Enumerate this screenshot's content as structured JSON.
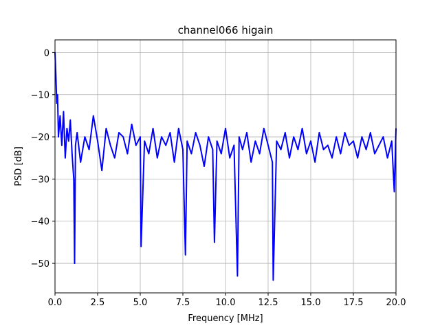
{
  "chart_data": {
    "type": "line",
    "title": "channel066 higain",
    "xlabel": "Frequency [MHz]",
    "ylabel": "PSD [dB]",
    "xlim": [
      0,
      20
    ],
    "ylim": [
      -57,
      3
    ],
    "x_ticks": [
      0.0,
      2.5,
      5.0,
      7.5,
      10.0,
      12.5,
      15.0,
      17.5,
      20.0
    ],
    "x_tick_labels": [
      "0.0",
      "2.5",
      "5.0",
      "7.5",
      "10.0",
      "12.5",
      "15.0",
      "17.5",
      "20.0"
    ],
    "y_ticks": [
      0,
      -10,
      -20,
      -30,
      -40,
      -50
    ],
    "y_tick_labels": [
      "0",
      "−10",
      "−20",
      "−30",
      "−40",
      "−50"
    ],
    "grid": true,
    "line_color": "#0000ff",
    "series": [
      {
        "name": "",
        "x": [
          0.0,
          0.05,
          0.1,
          0.15,
          0.2,
          0.3,
          0.4,
          0.5,
          0.6,
          0.7,
          0.8,
          0.9,
          1.0,
          1.1,
          1.15,
          1.2,
          1.3,
          1.5,
          1.75,
          2.0,
          2.25,
          2.5,
          2.75,
          3.0,
          3.25,
          3.5,
          3.75,
          4.0,
          4.25,
          4.5,
          4.75,
          5.0,
          5.05,
          5.25,
          5.5,
          5.75,
          6.0,
          6.25,
          6.5,
          6.75,
          7.0,
          7.25,
          7.5,
          7.65,
          7.75,
          8.0,
          8.25,
          8.5,
          8.75,
          9.0,
          9.25,
          9.35,
          9.5,
          9.75,
          10.0,
          10.25,
          10.5,
          10.7,
          10.8,
          11.0,
          11.25,
          11.5,
          11.75,
          12.0,
          12.25,
          12.5,
          12.75,
          12.8,
          13.0,
          13.25,
          13.5,
          13.75,
          14.0,
          14.25,
          14.5,
          14.75,
          15.0,
          15.25,
          15.5,
          15.75,
          16.0,
          16.25,
          16.5,
          16.75,
          17.0,
          17.25,
          17.5,
          17.75,
          18.0,
          18.25,
          18.5,
          18.75,
          19.0,
          19.25,
          19.5,
          19.75,
          19.9,
          20.0
        ],
        "y": [
          0,
          -5,
          -12,
          -10,
          -20,
          -15,
          -22,
          -14,
          -25,
          -18,
          -21,
          -16,
          -24,
          -30,
          -50,
          -22,
          -19,
          -26,
          -20,
          -23,
          -15,
          -21,
          -28,
          -18,
          -22,
          -25,
          -19,
          -20,
          -24,
          -17,
          -22,
          -20,
          -46,
          -21,
          -24,
          -18,
          -25,
          -20,
          -22,
          -19,
          -26,
          -18,
          -23,
          -48,
          -21,
          -24,
          -19,
          -22,
          -27,
          -20,
          -23,
          -45,
          -21,
          -24,
          -18,
          -25,
          -22,
          -53,
          -20,
          -23,
          -19,
          -26,
          -21,
          -24,
          -18,
          -22,
          -26,
          -54,
          -21,
          -23,
          -19,
          -25,
          -20,
          -23,
          -18,
          -24,
          -21,
          -26,
          -19,
          -23,
          -22,
          -25,
          -20,
          -24,
          -19,
          -22,
          -21,
          -25,
          -20,
          -23,
          -19,
          -24,
          -22,
          -20,
          -25,
          -21,
          -33,
          -18
        ]
      }
    ]
  }
}
